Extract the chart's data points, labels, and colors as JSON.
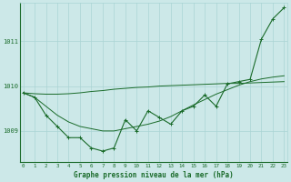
{
  "x": [
    0,
    1,
    2,
    3,
    4,
    5,
    6,
    7,
    8,
    9,
    10,
    11,
    12,
    13,
    14,
    15,
    16,
    17,
    18,
    19,
    20,
    21,
    22,
    23
  ],
  "y_main": [
    1009.85,
    1009.75,
    1009.35,
    1009.1,
    1008.85,
    1008.85,
    1008.62,
    1008.55,
    1008.62,
    1009.25,
    1009.0,
    1009.45,
    1009.3,
    1009.15,
    1009.45,
    1009.55,
    1009.8,
    1009.55,
    1010.05,
    1010.1,
    1010.15,
    1011.05,
    1011.5,
    1011.75
  ],
  "y_line1": [
    1009.85,
    1009.75,
    1009.55,
    1009.35,
    1009.2,
    1009.1,
    1009.05,
    1009.0,
    1009.0,
    1009.05,
    1009.1,
    1009.15,
    1009.22,
    1009.32,
    1009.45,
    1009.58,
    1009.7,
    1009.82,
    1009.92,
    1010.02,
    1010.1,
    1010.16,
    1010.2,
    1010.23
  ],
  "y_line2": [
    1009.85,
    1009.83,
    1009.82,
    1009.82,
    1009.83,
    1009.85,
    1009.88,
    1009.9,
    1009.93,
    1009.95,
    1009.97,
    1009.98,
    1010.0,
    1010.01,
    1010.02,
    1010.03,
    1010.04,
    1010.05,
    1010.06,
    1010.06,
    1010.07,
    1010.08,
    1010.09,
    1010.1
  ],
  "line_color": "#1a6b2a",
  "bg_color": "#cce8e8",
  "grid_color": "#aad4d4",
  "text_color": "#1a6b2a",
  "xlabel": "Graphe pression niveau de la mer (hPa)",
  "ylim": [
    1008.3,
    1011.85
  ],
  "yticks": [
    1009,
    1010,
    1011
  ],
  "xticks": [
    0,
    1,
    2,
    3,
    4,
    5,
    6,
    7,
    8,
    9,
    10,
    11,
    12,
    13,
    14,
    15,
    16,
    17,
    18,
    19,
    20,
    21,
    22,
    23
  ]
}
